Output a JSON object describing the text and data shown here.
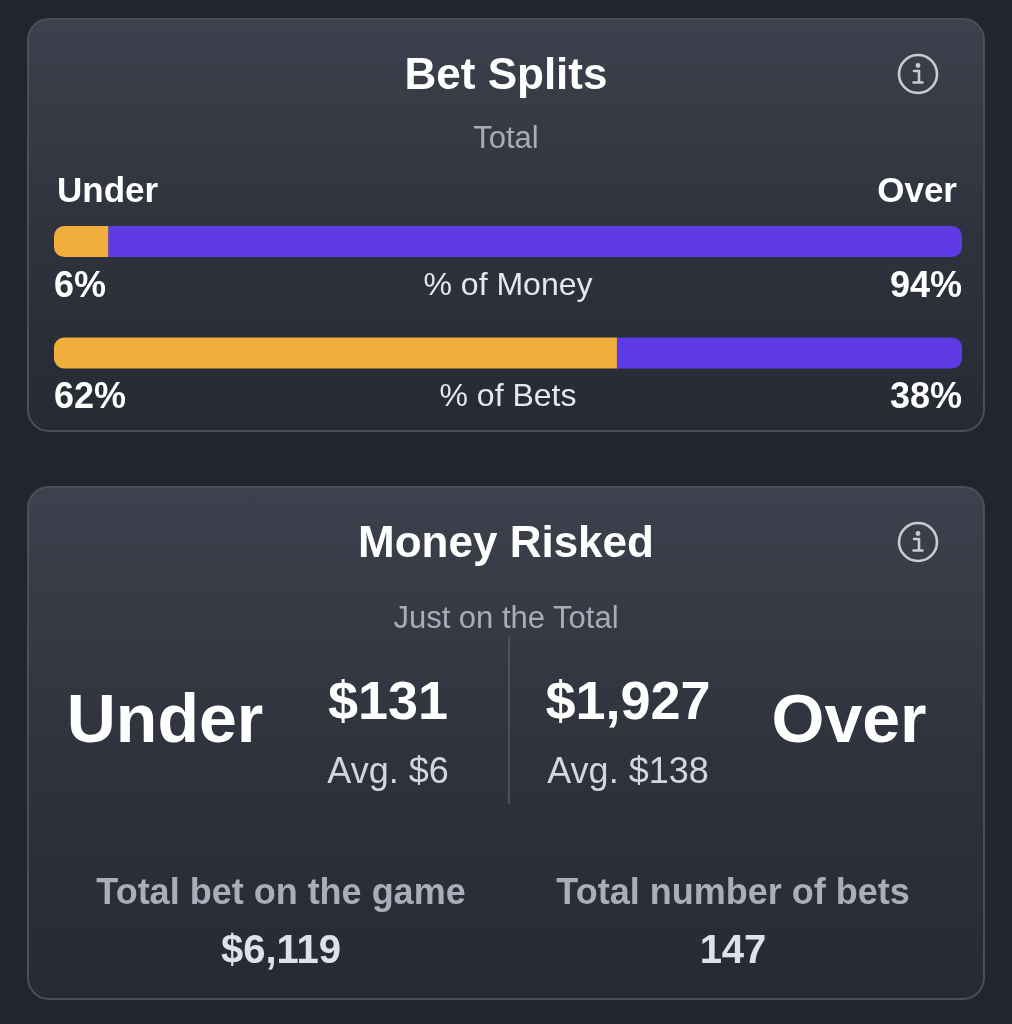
{
  "chart_data": [
    {
      "type": "bar",
      "title": "Bet Splits",
      "subtitle": "Total",
      "orientation": "horizontal",
      "stacked": true,
      "categories": [
        "% of Money",
        "% of Bets"
      ],
      "series": [
        {
          "name": "Under",
          "color": "#f0ae3d",
          "values": [
            6,
            62
          ],
          "value_labels": [
            "6%",
            "62%"
          ]
        },
        {
          "name": "Over",
          "color": "#5e3be6",
          "values": [
            94,
            38
          ],
          "value_labels": [
            "94%",
            "38%"
          ]
        }
      ]
    },
    {
      "type": "other",
      "title": "Money Risked",
      "subtitle": "Just on the Total",
      "annotations": [
        "Under",
        "$131",
        "Avg. $6",
        "$1,927",
        "Avg. $138",
        "Over",
        "Total bet on the game",
        "$6,119",
        "Total number of bets",
        "147"
      ]
    }
  ]
}
